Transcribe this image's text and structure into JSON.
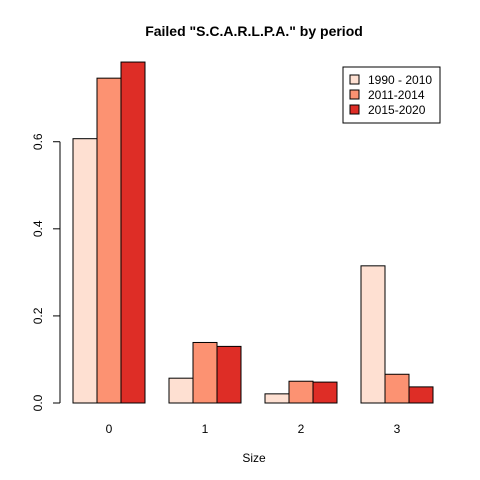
{
  "chart_data": {
    "type": "bar",
    "title": "Failed \"S.C.A.R.L.P.A.\" by period",
    "xlabel": "Size",
    "ylabel": "",
    "categories": [
      "0",
      "1",
      "2",
      "3"
    ],
    "y_ticks": [
      0.0,
      0.2,
      0.4,
      0.6
    ],
    "y_tick_labels": [
      "0.0",
      "0.2",
      "0.4",
      "0.6"
    ],
    "ylim": [
      0,
      0.79
    ],
    "legend_position": "top-right",
    "series": [
      {
        "name": "1990 - 2010",
        "color": "#fee0d2",
        "values": [
          0.607,
          0.057,
          0.021,
          0.315
        ]
      },
      {
        "name": "2011-2014",
        "color": "#fc9272",
        "values": [
          0.746,
          0.139,
          0.05,
          0.066
        ]
      },
      {
        "name": "2015-2020",
        "color": "#de2d26",
        "values": [
          0.783,
          0.13,
          0.048,
          0.037
        ]
      }
    ]
  }
}
